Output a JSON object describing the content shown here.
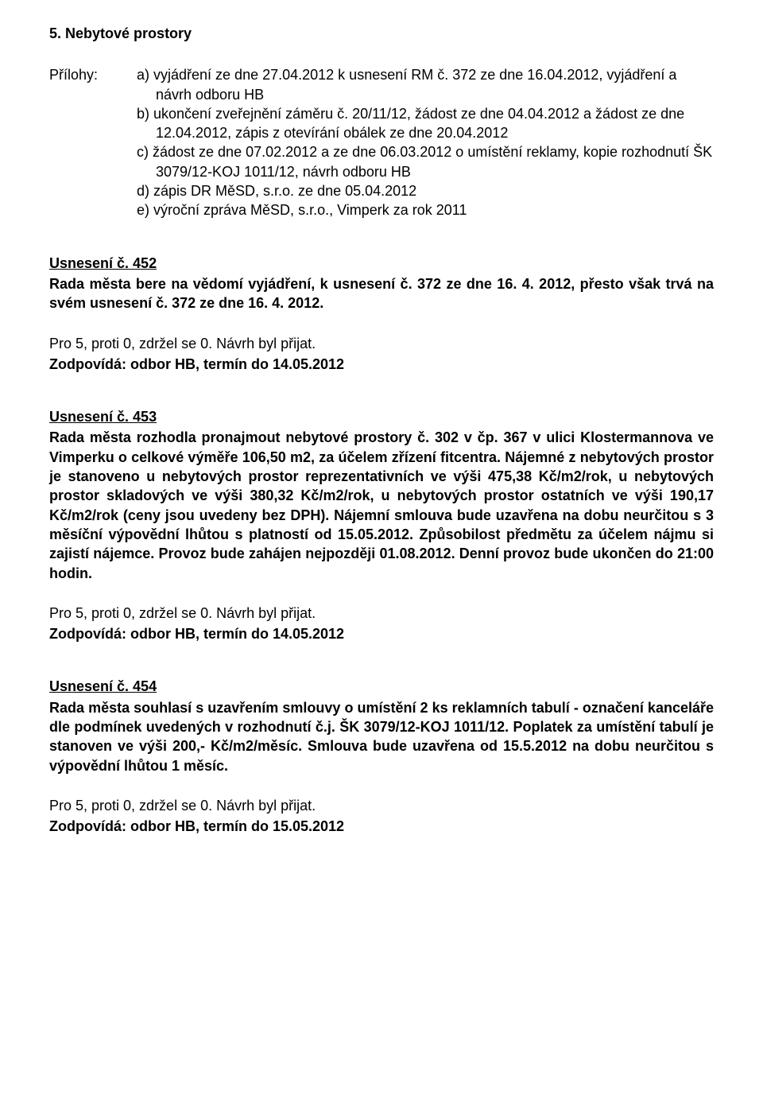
{
  "section": {
    "number": "5.",
    "title": "Nebytové prostory"
  },
  "attachments": {
    "label": "Přílohy:",
    "items": [
      "a) vyjádření ze dne 27.04.2012 k usnesení RM č. 372 ze dne 16.04.2012, vyjádření a návrh odboru HB",
      "b) ukončení zveřejnění záměru č. 20/11/12, žádost ze dne 04.04.2012 a žádost ze dne 12.04.2012, zápis z otevírání obálek ze dne 20.04.2012",
      "c) žádost ze dne 07.02.2012 a ze dne 06.03.2012 o umístění reklamy, kopie rozhodnutí ŠK 3079/12-KOJ 1011/12, návrh odboru HB",
      "d) zápis DR MěSD, s.r.o. ze dne 05.04.2012",
      "e) výroční zpráva MěSD, s.r.o., Vimperk za rok 2011"
    ]
  },
  "resolutions": [
    {
      "title": "Usnesení č. 452",
      "body": "Rada města bere na vědomí vyjádření, k usnesení č. 372 ze dne 16. 4. 2012, přesto však trvá na svém usnesení č. 372 ze dne 16. 4. 2012.",
      "vote": "Pro 5, proti 0, zdržel se 0. Návrh byl přijat.",
      "responsible": "Zodpovídá: odbor HB, termín do 14.05.2012"
    },
    {
      "title": "Usnesení č. 453",
      "body": "Rada města rozhodla pronajmout nebytové prostory č. 302 v čp. 367 v ulici Klostermannova ve Vimperku o celkové výměře 106,50 m2, za účelem zřízení fitcentra. Nájemné z nebytových prostor je stanoveno u nebytových prostor reprezentativních ve výši 475,38 Kč/m2/rok, u nebytových prostor skladových ve výši 380,32 Kč/m2/rok, u nebytových prostor ostatních ve výši 190,17 Kč/m2/rok (ceny jsou uvedeny bez DPH). Nájemní smlouva bude uzavřena na dobu neurčitou s 3 měsíční výpovědní lhůtou s platností od 15.05.2012. Způsobilost předmětu za účelem nájmu si zajistí nájemce. Provoz bude zahájen nejpozději 01.08.2012. Denní provoz bude ukončen do 21:00 hodin.",
      "vote": "Pro 5, proti 0, zdržel se 0. Návrh byl přijat.",
      "responsible": "Zodpovídá: odbor HB, termín do 14.05.2012"
    },
    {
      "title": "Usnesení č. 454",
      "body": "Rada města souhlasí s uzavřením smlouvy o umístění 2 ks reklamních  tabulí - označení kanceláře dle podmínek uvedených v rozhodnutí č.j. ŠK 3079/12-KOJ 1011/12. Poplatek za umístění tabulí je stanoven ve výši 200,- Kč/m2/měsíc. Smlouva bude uzavřena od 15.5.2012 na dobu neurčitou s výpovědní lhůtou 1 měsíc.",
      "vote": "Pro 5, proti 0, zdržel se 0. Návrh byl přijat.",
      "responsible": "Zodpovídá: odbor HB, termín do 15.05.2012"
    }
  ]
}
